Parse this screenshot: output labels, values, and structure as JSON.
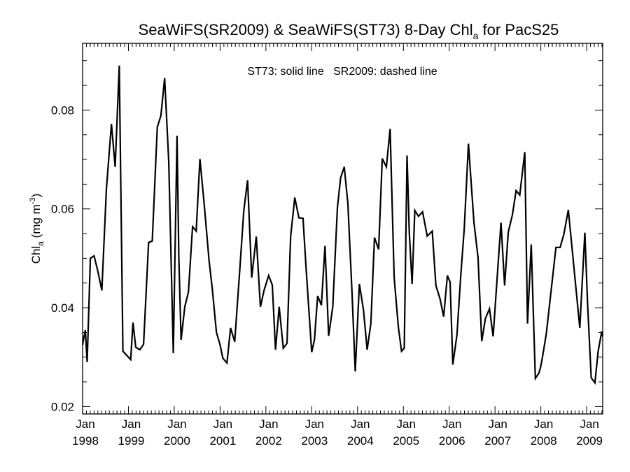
{
  "chart_data": {
    "type": "line",
    "title_main": "SeaWiFS(SR2009) & SeaWiFS(ST73) 8-Day Chl",
    "title_sub": "a",
    "title_tail": " for PacS25",
    "annotation": "ST73: solid line   SR2009: dashed line",
    "ylabel_main": "Chl",
    "ylabel_sub": "a",
    "ylabel_units": " (mg m",
    "ylabel_sup": "-3",
    "ylabel_close": ")",
    "ylim": [
      0.0185,
      0.0935
    ],
    "xlim": [
      1998.0,
      2009.35
    ],
    "yticks": [
      0.02,
      0.04,
      0.06,
      0.08
    ],
    "ytick_labels": [
      "0.02",
      "0.04",
      "0.06",
      "0.08"
    ],
    "xticks": [
      1998,
      1999,
      2000,
      2001,
      2002,
      2003,
      2004,
      2005,
      2006,
      2007,
      2008,
      2009
    ],
    "xtick_month": "Jan",
    "xtick_years": [
      "1998",
      "1999",
      "2000",
      "2001",
      "2002",
      "2003",
      "2004",
      "2005",
      "2006",
      "2007",
      "2008",
      "2009"
    ],
    "series": [
      {
        "x": [
          1998.0,
          1998.06,
          1998.1,
          1998.17,
          1998.25,
          1998.33,
          1998.42,
          1998.52,
          1998.63,
          1998.71,
          1998.8,
          1998.88,
          1999.05,
          1999.1,
          1999.16,
          1999.25,
          1999.33,
          1999.44,
          1999.52,
          1999.63,
          1999.71,
          1999.79,
          1999.88,
          1999.98,
          2000.06,
          2000.1,
          2000.15,
          2000.23,
          2000.31,
          2000.4,
          2000.48,
          2000.56,
          2000.65,
          2000.76,
          2000.83,
          2000.92,
          2001.0,
          2001.06,
          2001.15,
          2001.23,
          2001.32,
          2001.43,
          2001.52,
          2001.6,
          2001.69,
          2001.79,
          2001.88,
          2001.96,
          2002.06,
          2002.14,
          2002.21,
          2002.29,
          2002.38,
          2002.46,
          2002.54,
          2002.63,
          2002.72,
          2002.81,
          2002.88,
          2003.0,
          2003.06,
          2003.13,
          2003.21,
          2003.29,
          2003.37,
          2003.46,
          2003.56,
          2003.63,
          2003.71,
          2003.79,
          2003.88,
          2003.95,
          2004.04,
          2004.13,
          2004.21,
          2004.29,
          2004.37,
          2004.46,
          2004.54,
          2004.63,
          2004.71,
          2004.8,
          2004.89,
          2004.96,
          2005.02,
          2005.08,
          2005.13,
          2005.19,
          2005.25,
          2005.33,
          2005.42,
          2005.52,
          2005.63,
          2005.71,
          2005.8,
          2005.88,
          2005.96,
          2006.02,
          2006.08,
          2006.17,
          2006.25,
          2006.33,
          2006.42,
          2006.54,
          2006.63,
          2006.71,
          2006.79,
          2006.88,
          2006.96,
          2007.04,
          2007.13,
          2007.21,
          2007.29,
          2007.38,
          2007.46,
          2007.54,
          2007.65,
          2007.71,
          2007.79,
          2007.88,
          2007.96,
          2008.0,
          2008.04,
          2008.12,
          2008.33,
          2008.42,
          2008.5,
          2008.6,
          2008.85,
          2008.96,
          2009.02,
          2009.1,
          2009.18,
          2009.25,
          2009.33,
          2009.35
        ],
        "y": [
          0.0325,
          0.0355,
          0.029,
          0.05,
          0.0505,
          0.0475,
          0.0435,
          0.064,
          0.0772,
          0.0685,
          0.089,
          0.0312,
          0.0295,
          0.037,
          0.032,
          0.0315,
          0.0326,
          0.0532,
          0.0535,
          0.0765,
          0.0789,
          0.0865,
          0.0695,
          0.0308,
          0.0748,
          0.05,
          0.0335,
          0.0402,
          0.0432,
          0.0564,
          0.0555,
          0.0701,
          0.0613,
          0.0495,
          0.0438,
          0.035,
          0.0325,
          0.0298,
          0.0288,
          0.0359,
          0.0331,
          0.0476,
          0.0598,
          0.0658,
          0.0461,
          0.0544,
          0.0402,
          0.0435,
          0.0465,
          0.0446,
          0.0315,
          0.0402,
          0.0318,
          0.0328,
          0.0544,
          0.0623,
          0.0582,
          0.0581,
          0.0475,
          0.031,
          0.0335,
          0.0424,
          0.0405,
          0.0525,
          0.0343,
          0.0402,
          0.0602,
          0.0663,
          0.0685,
          0.061,
          0.043,
          0.0271,
          0.0448,
          0.0395,
          0.0315,
          0.0368,
          0.0542,
          0.0518,
          0.0702,
          0.0685,
          0.0762,
          0.0461,
          0.0362,
          0.0312,
          0.0318,
          0.0708,
          0.0552,
          0.0448,
          0.0597,
          0.0585,
          0.0594,
          0.0545,
          0.0555,
          0.0445,
          0.0418,
          0.0382,
          0.0465,
          0.0452,
          0.0285,
          0.0345,
          0.0462,
          0.0562,
          0.0732,
          0.0572,
          0.0502,
          0.0332,
          0.0378,
          0.0398,
          0.0342,
          0.0452,
          0.0572,
          0.0445,
          0.0553,
          0.0588,
          0.0637,
          0.0628,
          0.0715,
          0.0368,
          0.0528,
          0.0257,
          0.0268,
          0.0282,
          0.0302,
          0.0348,
          0.0522,
          0.0522,
          0.0548,
          0.0598,
          0.0359,
          0.0552,
          0.0408,
          0.0258,
          0.0248,
          0.0312,
          0.0352,
          0.0342
        ]
      }
    ],
    "colors": {
      "line": "#000000",
      "axis": "#000000",
      "background": "#ffffff"
    }
  }
}
